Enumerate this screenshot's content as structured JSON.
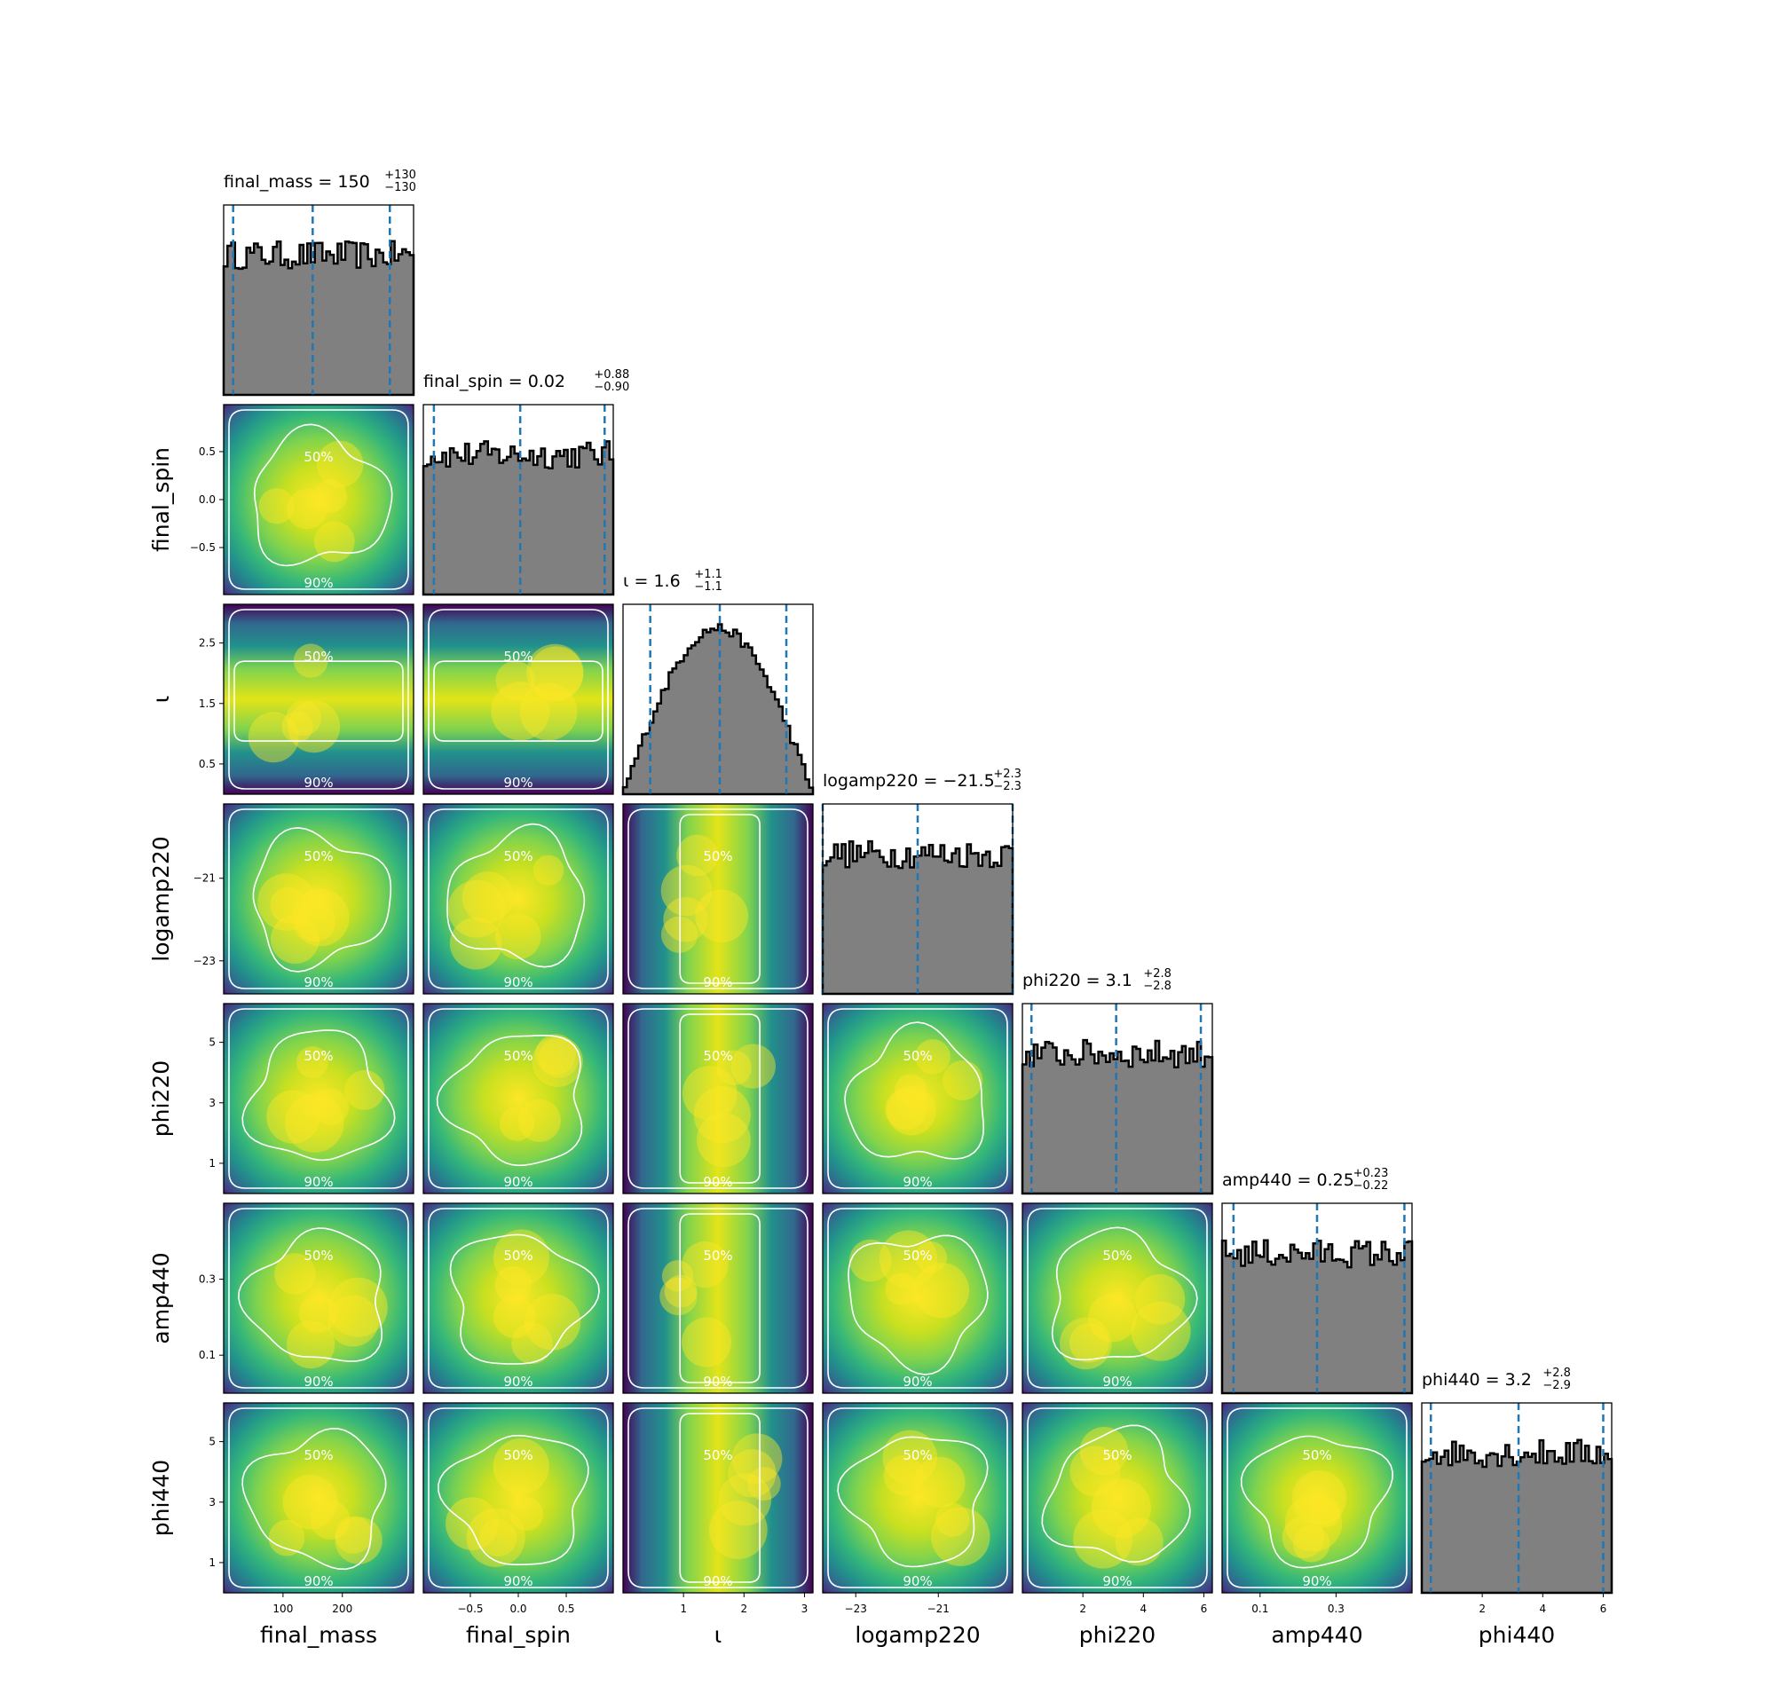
{
  "chart_data": {
    "type": "corner",
    "parameters": [
      {
        "name": "final_mass",
        "label": "final_mass",
        "range": [
          0,
          320
        ],
        "ticks": [
          100,
          200
        ],
        "tick_labels": [
          "100",
          "200"
        ],
        "title": {
          "prefix": "final_mass = ",
          "median": "150",
          "upper": "+130",
          "lower": "−130"
        },
        "quantiles": [
          16,
          150,
          280
        ],
        "hist_shape": "flat"
      },
      {
        "name": "final_spin",
        "label": "final_spin",
        "range": [
          -0.99,
          0.99
        ],
        "ticks": [
          -0.5,
          0.0,
          0.5
        ],
        "tick_labels": [
          "−0.5",
          "0.0",
          "0.5"
        ],
        "title": {
          "prefix": "final_spin = ",
          "median": "0.02",
          "upper": "+0.88",
          "lower": "−0.90"
        },
        "quantiles": [
          -0.88,
          0.02,
          0.9
        ],
        "hist_shape": "flat"
      },
      {
        "name": "iota",
        "label": "ι",
        "range": [
          0,
          3.14
        ],
        "ticks": [
          1,
          2,
          3
        ],
        "tick_labels": [
          "1",
          "2",
          "3"
        ],
        "title": {
          "prefix": "ι = ",
          "median": "1.6",
          "upper": "+1.1",
          "lower": "−1.1"
        },
        "quantiles": [
          0.45,
          1.6,
          2.7
        ],
        "hist_shape": "peaked"
      },
      {
        "name": "logamp220",
        "label": "logamp220",
        "range": [
          -23.8,
          -19.2
        ],
        "ticks": [
          -23,
          -21
        ],
        "tick_labels": [
          "−23",
          "−21"
        ],
        "title": {
          "prefix": "logamp220 = ",
          "median": "−21.5",
          "upper": "+2.3",
          "lower": "−2.3"
        },
        "quantiles": [
          -23.8,
          -21.5,
          -19.2
        ],
        "hist_shape": "flat"
      },
      {
        "name": "phi220",
        "label": "phi220",
        "range": [
          0,
          6.28
        ],
        "ticks": [
          2,
          4,
          6
        ],
        "tick_labels": [
          "2",
          "4",
          "6"
        ],
        "title": {
          "prefix": "phi220 = ",
          "median": "3.1",
          "upper": "+2.8",
          "lower": "−2.8"
        },
        "quantiles": [
          0.3,
          3.1,
          5.9
        ],
        "hist_shape": "flat"
      },
      {
        "name": "amp440",
        "label": "amp440",
        "range": [
          0.0,
          0.5
        ],
        "ticks": [
          0.1,
          0.3
        ],
        "tick_labels": [
          "0.1",
          "0.3"
        ],
        "title": {
          "prefix": "amp440 = ",
          "median": "0.25",
          "upper": "+0.23",
          "lower": "−0.22"
        },
        "quantiles": [
          0.03,
          0.25,
          0.48
        ],
        "hist_shape": "flat"
      },
      {
        "name": "phi440",
        "label": "phi440",
        "range": [
          0,
          6.28
        ],
        "ticks": [
          2,
          4,
          6
        ],
        "tick_labels": [
          "2",
          "4",
          "6"
        ],
        "title": {
          "prefix": "phi440 = ",
          "median": "3.2",
          "upper": "+2.8",
          "lower": "−2.9"
        },
        "quantiles": [
          0.3,
          3.2,
          6.0
        ],
        "hist_shape": "flat"
      }
    ],
    "y_ticks": {
      "final_spin": {
        "ticks": [
          0.5,
          0.0,
          -0.5
        ],
        "tick_labels": [
          "0.5",
          "0.0",
          "−0.5"
        ]
      },
      "iota": {
        "ticks": [
          2.5,
          1.5,
          0.5
        ],
        "tick_labels": [
          "2.5",
          "1.5",
          "0.5"
        ]
      },
      "logamp220": {
        "ticks": [
          -21,
          -23
        ],
        "tick_labels": [
          "−21",
          "−23"
        ]
      },
      "phi220": {
        "ticks": [
          5,
          3,
          1
        ],
        "tick_labels": [
          "5",
          "3",
          "1"
        ]
      },
      "amp440": {
        "ticks": [
          0.3,
          0.1
        ],
        "tick_labels": [
          "0.3",
          "0.1"
        ]
      },
      "phi440": {
        "ticks": [
          5,
          3,
          1
        ],
        "tick_labels": [
          "5",
          "3",
          "1"
        ]
      }
    },
    "contour_levels": [
      "50%",
      "90%"
    ],
    "colors": {
      "hist_fill": "#808080",
      "hist_edge": "#000000",
      "quantile_line": "#1f77b4",
      "contour": "#ffffff",
      "colormap": "viridis"
    }
  }
}
